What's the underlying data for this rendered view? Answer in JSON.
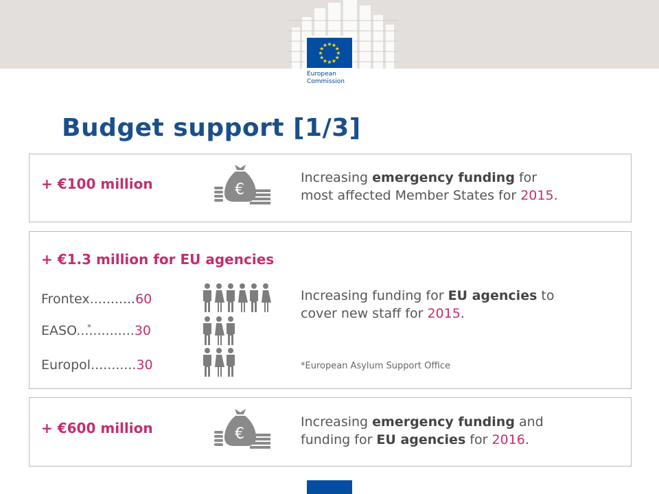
{
  "header": {
    "logo_line1": "European",
    "logo_line2": "Commission",
    "flag_color": "#034ea2",
    "star_color": "#ffd617"
  },
  "title": "Budget support [1/3]",
  "colors": {
    "accent": "#c32e6f",
    "title": "#1a4f8b",
    "text": "#555555"
  },
  "block1": {
    "amount": "+ €100 million",
    "icon": "money-bag-coins-icon",
    "desc_line1_pre": "Increasing ",
    "desc_line1_bold": "emergency funding",
    "desc_line1_post": " for",
    "desc_line2_pre": "most affected Member States for ",
    "desc_line2_year": "2015",
    "desc_line2_post": "."
  },
  "block2": {
    "amount": "+ €1.3 million for EU agencies",
    "agencies": [
      {
        "name": "Frontex...........",
        "value": "60",
        "people_icons": 6
      },
      {
        "name": "EASO..............",
        "value": "30",
        "people_icons": 3
      },
      {
        "name": "Europol...........",
        "value": "30",
        "people_icons": 3
      }
    ],
    "asterisk": "*",
    "desc_line1_pre": "Increasing funding for ",
    "desc_line1_bold": "EU agencies",
    "desc_line1_post": " to",
    "desc_line2_pre": "cover new staff for ",
    "desc_line2_year": "2015",
    "desc_line2_post": ".",
    "footnote": "*European Asylum Support Office"
  },
  "block3": {
    "amount": "+ €600 million",
    "icon": "money-bag-coins-icon",
    "desc_line1_pre": "Increasing ",
    "desc_line1_bold": "emergency funding",
    "desc_line1_post": " and",
    "desc_line2_pre": "funding for ",
    "desc_line2_bold": "EU agencies",
    "desc_line2_mid": " for ",
    "desc_line2_year": "2016",
    "desc_line2_post": "."
  }
}
